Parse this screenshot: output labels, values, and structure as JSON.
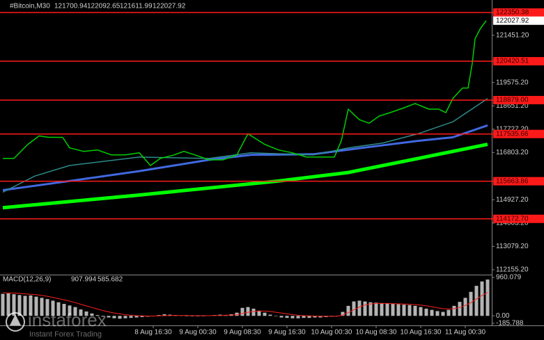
{
  "chart_data": [
    {
      "type": "line",
      "title": "#Bitcoin,M30",
      "ohlc": [
        121700.94,
        122092.65,
        121611.99,
        122027.92
      ],
      "last": 122027.92,
      "ylim": [
        111988,
        122847
      ],
      "xlim": [
        -27.5,
        60.75
      ],
      "yticks": [
        {
          "value": 121451.2,
          "label": "121451.20"
        },
        {
          "value": 119575.2,
          "label": "119575.20"
        },
        {
          "value": 118651.2,
          "label": "118651.20"
        },
        {
          "value": 117727.2,
          "label": "117727.20"
        },
        {
          "value": 116803.2,
          "label": "116803.20"
        },
        {
          "value": 114927.2,
          "label": "114927.20"
        },
        {
          "value": 114003.2,
          "label": "114003.20"
        },
        {
          "value": 113079.2,
          "label": "113079.20"
        },
        {
          "value": 112155.2,
          "label": "112155.20"
        }
      ],
      "xticks": [
        {
          "value": 0,
          "label": "8 Aug 16:30"
        },
        {
          "value": 8,
          "label": "9 Aug 00:30"
        },
        {
          "value": 16,
          "label": "9 Aug 08:30"
        },
        {
          "value": 24,
          "label": "9 Aug 16:30"
        },
        {
          "value": 32,
          "label": "10 Aug 00:30"
        },
        {
          "value": 40,
          "label": "10 Aug 08:30"
        },
        {
          "value": 48,
          "label": "10 Aug 16:30"
        },
        {
          "value": 56,
          "label": "11 Aug 00:30"
        }
      ],
      "levels": [
        122350.38,
        {
          "value": 120420.51,
          "label": "120420.51"
        },
        {
          "value": 118879,
          "label": "118879.00"
        },
        117535.66,
        115663.86,
        {
          "value": 114172.7,
          "label": "114172.70"
        }
      ],
      "level_color": "#ff1a1a",
      "series": [
        {
          "color": "#00ff00",
          "width": 5,
          "x": [
            -27,
            -2.5,
            22.5,
            35,
            47.5,
            60
          ],
          "values": [
            114612,
            115115,
            115673,
            116008,
            116566,
            117125
          ]
        },
        {
          "color": "#4169e1",
          "width": 3,
          "x": [
            -27,
            -15,
            -2.5,
            10,
            17.5,
            28.75,
            37.5,
            47.5,
            53.75,
            60
          ],
          "values": [
            115310,
            115673,
            116064,
            116511,
            116706,
            116734,
            116985,
            117264,
            117404,
            117879
          ]
        },
        {
          "color": "#2e8b8b",
          "width": 1.5,
          "x": [
            -27,
            -21.25,
            -15,
            -2.5,
            10,
            17.5,
            28.75,
            35,
            41.25,
            47.5,
            53.75,
            60
          ],
          "values": [
            115226,
            115869,
            116287,
            116622,
            116566,
            116790,
            116706,
            116985,
            117181,
            117543,
            118018,
            118940
          ]
        },
        {
          "color": "#00d000",
          "width": 1.5,
          "x": [
            -27,
            -25,
            -22.5,
            -20.5,
            -18.75,
            -16.25,
            -15,
            -12.5,
            -10,
            -7.5,
            -5,
            -2.5,
            -0.5,
            1.25,
            3.75,
            5.5,
            7.5,
            10,
            12.5,
            15,
            17,
            18,
            20,
            22.5,
            25,
            27.5,
            30,
            32.5,
            33.75,
            35,
            37,
            38.75,
            40.5,
            42.5,
            45,
            47,
            49.5,
            51.25,
            52.5,
            53.75,
            55.5,
            56.5,
            57.25,
            57.75,
            58.75,
            59.75
          ],
          "values": [
            116566,
            116566,
            117125,
            117460,
            117404,
            117404,
            116985,
            116846,
            116901,
            116706,
            116706,
            116790,
            116287,
            116566,
            116706,
            116846,
            116706,
            116511,
            116511,
            116706,
            117543,
            117404,
            117125,
            116901,
            116790,
            116622,
            116622,
            116622,
            117264,
            118521,
            118102,
            117962,
            118241,
            118381,
            118576,
            118744,
            118521,
            118521,
            118381,
            118940,
            119359,
            119359,
            120336,
            121313,
            121732,
            122027.92
          ]
        }
      ]
    },
    {
      "type": "bar",
      "title": "MACD(12,26,9)",
      "ylim": [
        -185.788,
        960.079
      ],
      "xlim": [
        -27.5,
        60.75
      ],
      "yticks": [
        960.079,
        {
          "value": 0,
          "label": "0.00"
        },
        -185.788
      ],
      "x": [
        -27,
        -26,
        -25,
        -24,
        -23,
        -22,
        -21,
        -20,
        -19,
        -18,
        -17,
        -16,
        -15,
        -14,
        -13,
        -12,
        -11,
        -10,
        -9,
        -8,
        -7,
        -6,
        -5,
        -4,
        -3,
        -2,
        -1,
        0,
        1,
        2,
        3,
        4,
        5,
        6,
        7,
        8,
        9,
        10,
        11,
        12,
        13,
        14,
        15,
        16,
        17,
        18,
        19,
        20,
        21,
        22,
        23,
        24,
        25,
        26,
        27,
        28,
        29,
        30,
        31,
        32,
        33,
        34,
        35,
        36,
        37,
        38,
        39,
        40,
        41,
        42,
        43,
        44,
        45,
        46,
        47,
        48,
        49,
        50,
        51,
        52,
        53,
        54,
        55,
        56,
        57,
        58,
        59,
        60
      ],
      "series": [
        {
          "color": "#b4b4b4",
          "values": [
            550,
            560,
            540,
            520,
            500,
            510,
            480,
            450,
            420,
            380,
            340,
            300,
            260,
            220,
            160,
            110,
            60,
            20,
            -20,
            -40,
            -60,
            -70,
            -60,
            -50,
            -40,
            -30,
            -20,
            0,
            20,
            40,
            30,
            20,
            10,
            0,
            -10,
            -10,
            0,
            10,
            20,
            30,
            20,
            40,
            80,
            200,
            220,
            180,
            130,
            80,
            30,
            -10,
            -40,
            -50,
            -60,
            -60,
            -50,
            -50,
            -40,
            -40,
            -30,
            -20,
            -10,
            100,
            250,
            360,
            380,
            360,
            340,
            330,
            320,
            310,
            300,
            290,
            280,
            270,
            250,
            220,
            180,
            150,
            120,
            100,
            150,
            250,
            350,
            450,
            600,
            750,
            860,
            907.994
          ]
        },
        {
          "color": "#ff2020",
          "values": [
            580,
            575,
            570,
            560,
            550,
            540,
            530,
            510,
            490,
            460,
            430,
            400,
            370,
            330,
            290,
            250,
            210,
            170,
            130,
            100,
            70,
            50,
            30,
            15,
            5,
            0,
            -5,
            -5,
            0,
            5,
            10,
            10,
            10,
            10,
            5,
            5,
            5,
            5,
            10,
            10,
            15,
            20,
            30,
            60,
            90,
            110,
            120,
            120,
            110,
            90,
            70,
            50,
            30,
            15,
            5,
            0,
            -5,
            -10,
            -10,
            -10,
            -10,
            20,
            80,
            150,
            220,
            270,
            300,
            310,
            310,
            310,
            305,
            300,
            295,
            290,
            280,
            270,
            250,
            230,
            200,
            180,
            170,
            180,
            210,
            260,
            330,
            420,
            510,
            585.682
          ]
        }
      ]
    }
  ],
  "watermark": {
    "brand": "instaforex",
    "tagline": "Instant Forex Trading"
  }
}
